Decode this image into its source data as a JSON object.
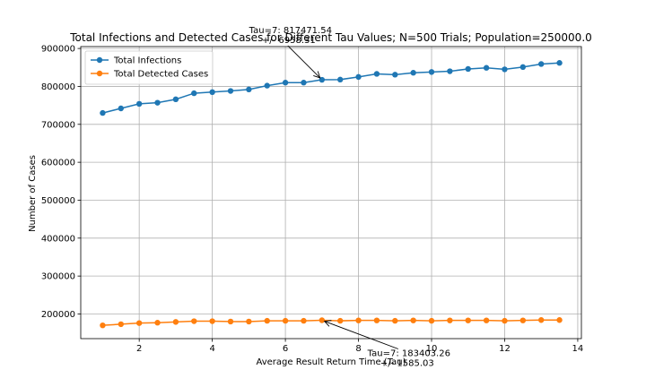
{
  "chart_data": {
    "type": "line",
    "title": "Total Infections and Detected Cases for Different Tau Values; N=500 Trials; Population=250000.0",
    "xlabel": "Average Result Return Time (Tau)",
    "ylabel": "Number of Cases",
    "xlim": [
      0.4,
      14.1
    ],
    "ylim": [
      135000,
      905000
    ],
    "xticks": [
      2,
      4,
      6,
      8,
      10,
      12,
      14
    ],
    "yticks": [
      200000,
      300000,
      400000,
      500000,
      600000,
      700000,
      800000,
      900000
    ],
    "grid": true,
    "legend_position": "upper-left",
    "x": [
      1.0,
      1.5,
      2.0,
      2.5,
      3.0,
      3.5,
      4.0,
      4.5,
      5.0,
      5.5,
      6.0,
      6.5,
      7.0,
      7.5,
      8.0,
      8.5,
      9.0,
      9.5,
      10.0,
      10.5,
      11.0,
      11.5,
      12.0,
      12.5,
      13.0,
      13.5
    ],
    "series": [
      {
        "name": "Total Infections",
        "color": "#1f77b4",
        "values": [
          730000,
          742000,
          754000,
          757000,
          766000,
          782000,
          785000,
          788000,
          792000,
          802000,
          810000,
          810000,
          817471.54,
          818000,
          825000,
          833000,
          831000,
          836000,
          838000,
          840000,
          846000,
          849000,
          845000,
          851000,
          859000,
          862000
        ]
      },
      {
        "name": "Total Detected Cases",
        "color": "#ff7f0e",
        "values": [
          170000,
          173000,
          176000,
          177000,
          179000,
          181000,
          181000,
          180000,
          180000,
          182000,
          182000,
          182000,
          183403.26,
          182000,
          183000,
          183000,
          182000,
          183000,
          182000,
          183000,
          183000,
          183000,
          182000,
          183000,
          184000,
          184000
        ]
      }
    ],
    "annotations": [
      {
        "line1": "Tau=7: 817471.54",
        "line2": "+/- 6958.31",
        "x": 7.0,
        "y": 817471.54
      },
      {
        "line1": "Tau=7: 183403.26",
        "line2": "+/- 1585.03",
        "x": 7.0,
        "y": 183403.26
      }
    ]
  }
}
